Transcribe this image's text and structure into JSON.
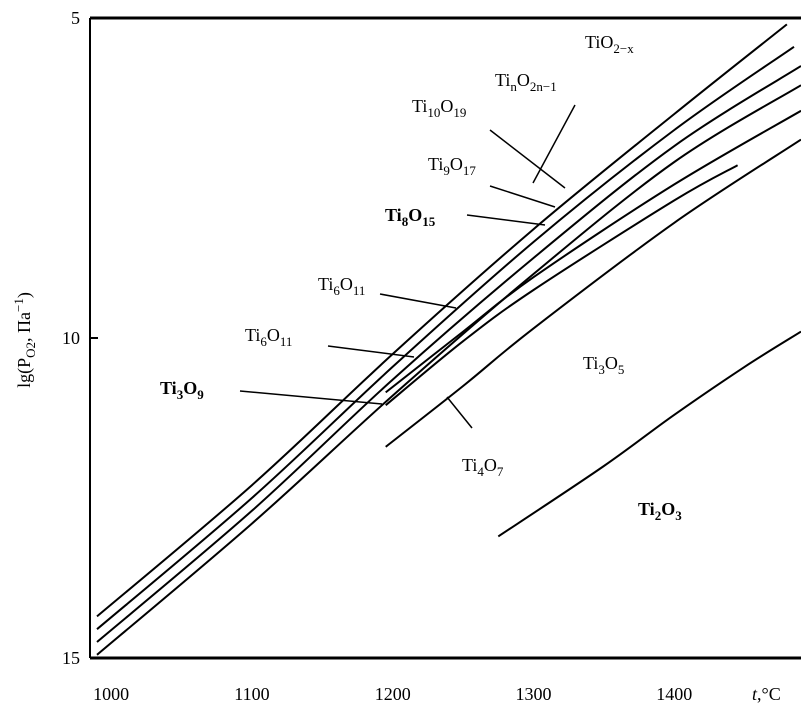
{
  "chart_data": {
    "type": "line",
    "title": "",
    "xlabel": "t,°C",
    "ylabel": "lg(PO2, Па−1)",
    "xlim": [
      985,
      1490
    ],
    "ylim": [
      5,
      15
    ],
    "y_inverted": true,
    "grid": false,
    "x_ticks": [
      1000,
      1100,
      1200,
      1300,
      1400
    ],
    "y_ticks": [
      5,
      10,
      15
    ],
    "series": [
      {
        "points": [
          [
            990,
            14.35
          ],
          [
            1100,
            12.3
          ],
          [
            1200,
            10.25
          ],
          [
            1300,
            8.3
          ],
          [
            1400,
            6.5
          ],
          [
            1480,
            5.1
          ]
        ]
      },
      {
        "points": [
          [
            990,
            14.55
          ],
          [
            1100,
            12.5
          ],
          [
            1200,
            10.45
          ],
          [
            1300,
            8.5
          ],
          [
            1400,
            6.75
          ],
          [
            1485,
            5.45
          ]
        ]
      },
      {
        "points": [
          [
            990,
            14.75
          ],
          [
            1100,
            12.7
          ],
          [
            1200,
            10.65
          ],
          [
            1300,
            8.75
          ],
          [
            1400,
            7.0
          ],
          [
            1490,
            5.75
          ]
        ]
      },
      {
        "points": [
          [
            990,
            14.95
          ],
          [
            1100,
            12.9
          ],
          [
            1200,
            10.9
          ],
          [
            1300,
            9.0
          ],
          [
            1400,
            7.25
          ],
          [
            1490,
            6.05
          ]
        ]
      },
      {
        "points": [
          [
            1195,
            10.85
          ],
          [
            1250,
            9.9
          ],
          [
            1300,
            9.05
          ],
          [
            1400,
            7.6
          ],
          [
            1490,
            6.45
          ]
        ]
      },
      {
        "points": [
          [
            1195,
            11.05
          ],
          [
            1250,
            10.05
          ],
          [
            1300,
            9.25
          ],
          [
            1400,
            7.85
          ],
          [
            1445,
            7.3
          ]
        ]
      },
      {
        "points": [
          [
            1195,
            11.7
          ],
          [
            1250,
            10.75
          ],
          [
            1300,
            9.85
          ],
          [
            1400,
            8.2
          ],
          [
            1490,
            6.9
          ]
        ]
      },
      {
        "points": [
          [
            1275,
            13.1
          ],
          [
            1350,
            12.0
          ],
          [
            1400,
            11.2
          ],
          [
            1450,
            10.45
          ],
          [
            1490,
            9.9
          ]
        ]
      }
    ],
    "annotations": [
      {
        "text": "TiO",
        "sub": "2−x"
      },
      {
        "text": "Ti",
        "sub": "n",
        "text2": "O",
        "sub2": "2n−1"
      },
      {
        "text": "Ti",
        "sub": "10",
        "text2": "O",
        "sub2": "19"
      },
      {
        "text": "Ti",
        "sub": "9",
        "text2": "O",
        "sub2": "17"
      },
      {
        "text": "Ti",
        "sub": "8",
        "text2": "O",
        "sub2": "15"
      },
      {
        "text": "Ti",
        "sub": "6",
        "text2": "O",
        "sub2": "11"
      },
      {
        "text": "Ti",
        "sub": "6",
        "text2": "O",
        "sub2": "11"
      },
      {
        "text": "Ti",
        "sub": "3",
        "text2": "O",
        "sub2": "9"
      },
      {
        "text": "Ti",
        "sub": "4",
        "text2": "O",
        "sub2": "7"
      },
      {
        "text": "Ti",
        "sub": "3",
        "text2": "O",
        "sub2": "5"
      },
      {
        "text": "Ti",
        "sub": "2",
        "text2": "O",
        "sub2": "3"
      }
    ]
  }
}
